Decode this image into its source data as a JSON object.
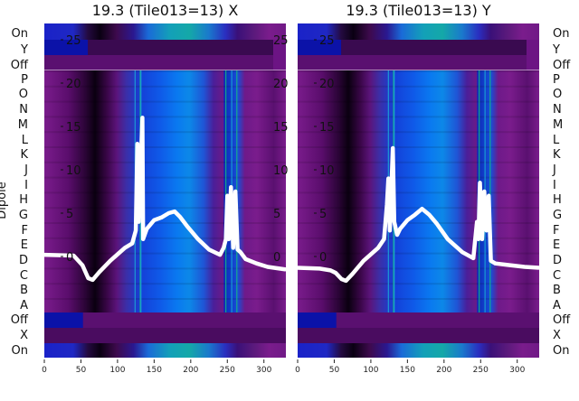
{
  "chart_data": [
    {
      "type": "heatmap",
      "title": "19.3 (Tile013=13) X",
      "ylabel": "Dipole",
      "xlim": [
        0,
        330
      ],
      "xticks": [
        0,
        50,
        100,
        150,
        200,
        250,
        300
      ],
      "yticks": [
        0,
        5,
        10,
        15,
        20,
        25
      ],
      "row_labels": [
        "On",
        "Y",
        "Off",
        "P",
        "O",
        "N",
        "M",
        "L",
        "K",
        "J",
        "I",
        "H",
        "G",
        "F",
        "E",
        "D",
        "C",
        "B",
        "A",
        "Off",
        "X",
        "On"
      ],
      "series": [
        {
          "values": [
            [
              0,
              0.2
            ],
            [
              40,
              0.1
            ],
            [
              52,
              -1
            ],
            [
              60,
              -2.5
            ],
            [
              66,
              -2.7
            ],
            [
              75,
              -1.8
            ],
            [
              90,
              -0.5
            ],
            [
              110,
              1
            ],
            [
              120,
              1.5
            ],
            [
              125,
              3
            ],
            [
              127,
              13
            ],
            [
              129,
              4
            ],
            [
              131,
              9
            ],
            [
              134,
              16
            ],
            [
              135,
              2
            ],
            [
              140,
              3.2
            ],
            [
              150,
              4.2
            ],
            [
              160,
              4.5
            ],
            [
              170,
              5
            ],
            [
              178,
              5.2
            ],
            [
              185,
              4.6
            ],
            [
              195,
              3.5
            ],
            [
              210,
              2
            ],
            [
              225,
              0.8
            ],
            [
              240,
              0.2
            ],
            [
              245,
              1
            ],
            [
              248,
              2
            ],
            [
              250,
              7
            ],
            [
              252,
              2
            ],
            [
              255,
              8
            ],
            [
              258,
              1
            ],
            [
              261,
              7.5
            ],
            [
              264,
              0.8
            ],
            [
              268,
              0.5
            ],
            [
              275,
              -0.3
            ],
            [
              290,
              -0.8
            ],
            [
              305,
              -1.2
            ],
            [
              330,
              -1.5
            ]
          ]
        }
      ]
    },
    {
      "type": "heatmap",
      "title": "19.3 (Tile013=13) Y",
      "xlim": [
        0,
        330
      ],
      "xticks": [
        0,
        50,
        100,
        150,
        200,
        250,
        300
      ],
      "yticks": [
        0,
        5,
        10,
        15,
        20,
        25
      ],
      "row_labels": [
        "On",
        "Y",
        "Off",
        "P",
        "O",
        "N",
        "M",
        "L",
        "K",
        "J",
        "I",
        "H",
        "G",
        "F",
        "E",
        "D",
        "C",
        "B",
        "A",
        "Off",
        "X",
        "On"
      ],
      "series": [
        {
          "values": [
            [
              0,
              -1.3
            ],
            [
              30,
              -1.4
            ],
            [
              45,
              -1.6
            ],
            [
              52,
              -1.9
            ],
            [
              60,
              -2.6
            ],
            [
              66,
              -2.8
            ],
            [
              75,
              -2
            ],
            [
              90,
              -0.5
            ],
            [
              110,
              1
            ],
            [
              118,
              2
            ],
            [
              122,
              6
            ],
            [
              124,
              9
            ],
            [
              126,
              3
            ],
            [
              130,
              12.5
            ],
            [
              132,
              4
            ],
            [
              136,
              2.5
            ],
            [
              140,
              3.2
            ],
            [
              150,
              4.2
            ],
            [
              160,
              4.8
            ],
            [
              170,
              5.5
            ],
            [
              180,
              4.8
            ],
            [
              190,
              3.8
            ],
            [
              205,
              2
            ],
            [
              225,
              0.5
            ],
            [
              240,
              -0.2
            ],
            [
              245,
              4
            ],
            [
              247,
              2
            ],
            [
              249,
              8.5
            ],
            [
              252,
              2
            ],
            [
              255,
              7.5
            ],
            [
              258,
              3
            ],
            [
              261,
              7
            ],
            [
              264,
              -0.5
            ],
            [
              270,
              -0.8
            ],
            [
              290,
              -1
            ],
            [
              310,
              -1.2
            ],
            [
              330,
              -1.3
            ]
          ]
        }
      ]
    }
  ]
}
